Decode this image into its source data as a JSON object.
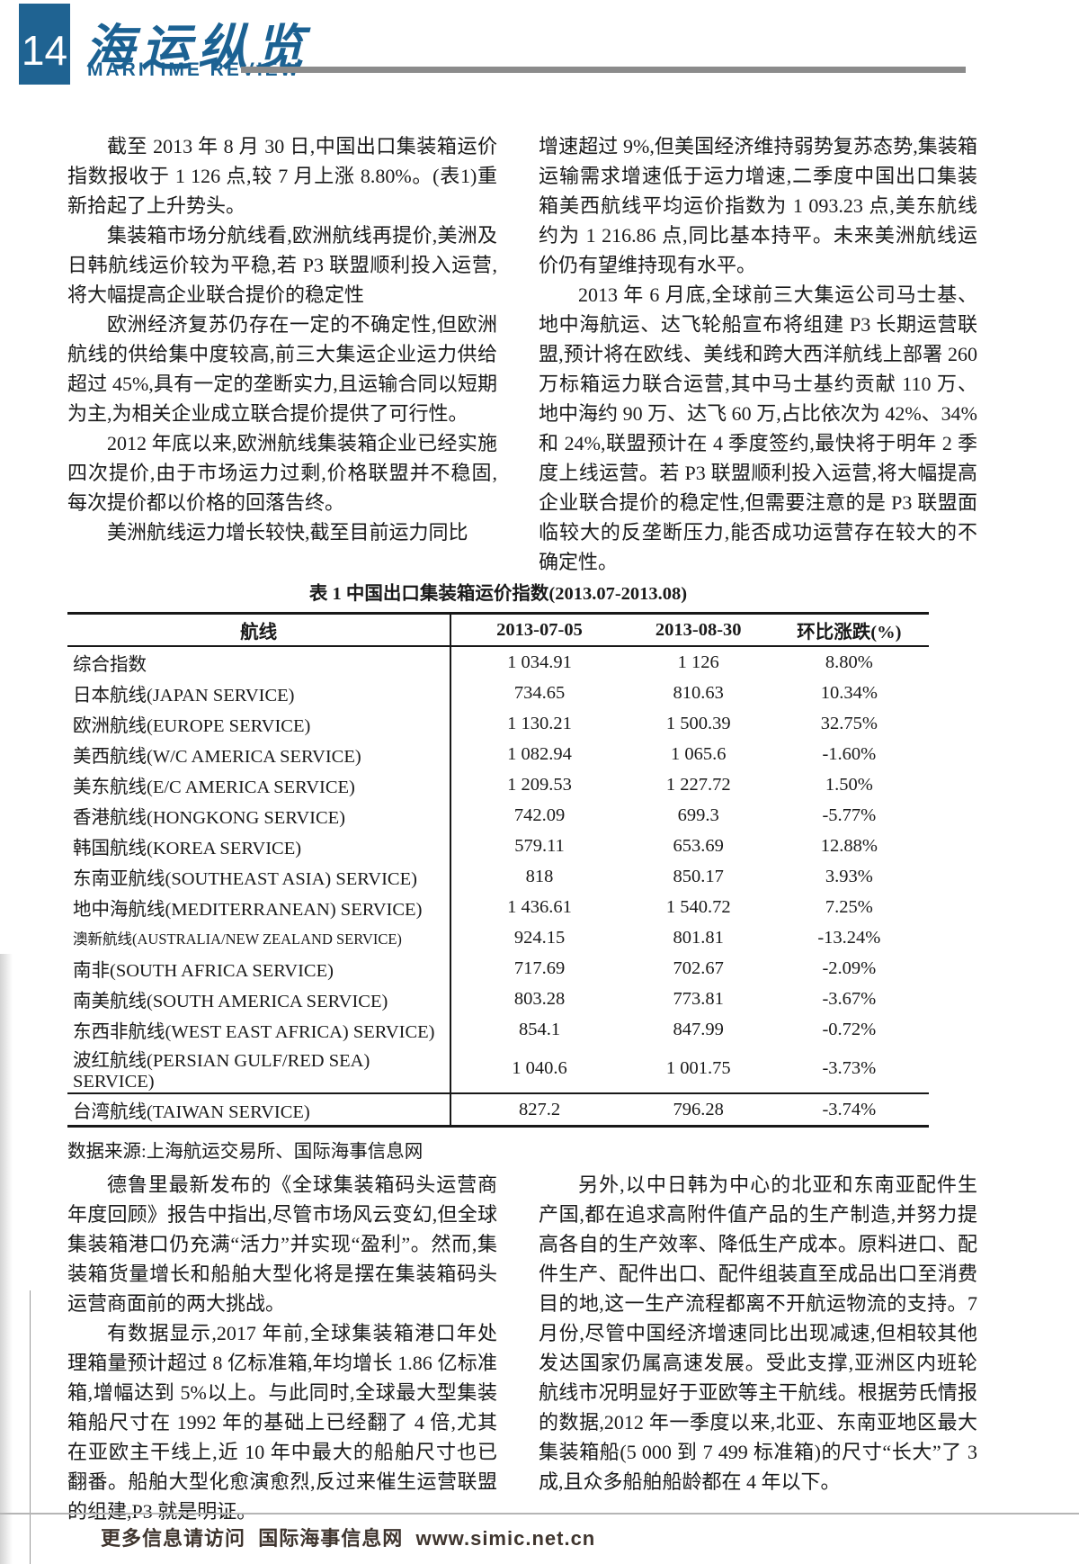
{
  "header": {
    "page_number": "14",
    "title_cn": "海运纵览",
    "title_en": "MARITIME REVIEW"
  },
  "article": {
    "col_left_top": {
      "p1": "截至 2013 年 8 月 30 日,中国出口集装箱运价指数报收于 1 126 点,较 7 月上涨 8.80%。(表1)重新拾起了上升势头。",
      "p2": "集装箱市场分航线看,欧洲航线再提价,美洲及日韩航线运价较为平稳,若 P3 联盟顺利投入运营,将大幅提高企业联合提价的稳定性",
      "p3": "欧洲经济复苏仍存在一定的不确定性,但欧洲航线的供给集中度较高,前三大集运企业运力供给超过 45%,具有一定的垄断实力,且运输合同以短期为主,为相关企业成立联合提价提供了可行性。",
      "p4": "2012 年底以来,欧洲航线集装箱企业已经实施四次提价,由于市场运力过剩,价格联盟并不稳固,每次提价都以价格的回落告终。",
      "p5": "美洲航线运力增长较快,截至目前运力同比"
    },
    "col_right_top": {
      "p1": "增速超过 9%,但美国经济维持弱势复苏态势,集装箱运输需求增速低于运力增速,二季度中国出口集装箱美西航线平均运价指数为 1 093.23 点,美东航线约为 1 216.86 点,同比基本持平。未来美洲航线运价仍有望维持现有水平。",
      "p2": "2013 年 6 月底,全球前三大集运公司马士基、地中海航运、达飞轮船宣布将组建 P3 长期运营联盟,预计将在欧线、美线和跨大西洋航线上部署 260 万标箱运力联合运营,其中马士基约贡献 110 万、地中海约 90 万、达飞 60 万,占比依次为 42%、34%和 24%,联盟预计在 4 季度签约,最快将于明年 2 季度上线运营。若 P3 联盟顺利投入运营,将大幅提高企业联合提价的稳定性,但需要注意的是 P3 联盟面临较大的反垄断压力,能否成功运营存在较大的不确定性。"
    },
    "col_left_bottom": {
      "p1": "德鲁里最新发布的《全球集装箱码头运营商年度回顾》报告中指出,尽管市场风云变幻,但全球集装箱港口仍充满“活力”并实现“盈利”。然而,集装箱货量增长和船舶大型化将是摆在集装箱码头运营商面前的两大挑战。",
      "p2": "有数据显示,2017 年前,全球集装箱港口年处理箱量预计超过 8 亿标准箱,年均增长 1.86 亿标准箱,增幅达到 5%以上。与此同时,全球最大型集装箱船尺寸在 1992 年的基础上已经翻了 4 倍,尤其在亚欧主干线上,近 10 年中最大的船舶尺寸也已翻番。船舶大型化愈演愈烈,反过来催生运营联盟的组建,P3 就是明证。"
    },
    "col_right_bottom": {
      "p1": "另外,以中日韩为中心的北亚和东南亚配件生产国,都在追求高附件值产品的生产制造,并努力提高各自的生产效率、降低生产成本。原料进口、配件生产、配件出口、配件组装直至成品出口至消费目的地,这一生产流程都离不开航运物流的支持。7 月份,尽管中国经济增速同比出现减速,但相较其他发达国家仍属高速发展。受此支撑,亚洲区内班轮航线市况明显好于亚欧等主干航线。根据劳氏情报的数据,2012 年一季度以来,北亚、东南亚地区最大集装箱船(5 000 到 7 499 标准箱)的尺寸“长大”了 3 成,且众多船舶船龄都在 4 年以下。"
    }
  },
  "table": {
    "caption": "表 1  中国出口集装箱运价指数(2013.07-2013.08)",
    "headers": [
      "航线",
      "2013-07-05",
      "2013-08-30",
      "环比涨跌(%)"
    ],
    "rows": [
      {
        "route": "综合指数",
        "jul": "1 034.91",
        "aug": "1 126",
        "chg": "8.80%"
      },
      {
        "route": "日本航线(JAPAN SERVICE)",
        "jul": "734.65",
        "aug": "810.63",
        "chg": "10.34%"
      },
      {
        "route": "欧洲航线(EUROPE SERVICE)",
        "jul": "1 130.21",
        "aug": "1 500.39",
        "chg": "32.75%"
      },
      {
        "route": "美西航线(W/C AMERICA SERVICE)",
        "jul": "1 082.94",
        "aug": "1 065.6",
        "chg": "-1.60%"
      },
      {
        "route": "美东航线(E/C AMERICA SERVICE)",
        "jul": "1 209.53",
        "aug": "1 227.72",
        "chg": "1.50%"
      },
      {
        "route": "香港航线(HONGKONG SERVICE)",
        "jul": "742.09",
        "aug": "699.3",
        "chg": "-5.77%"
      },
      {
        "route": "韩国航线(KOREA SERVICE)",
        "jul": "579.11",
        "aug": "653.69",
        "chg": "12.88%"
      },
      {
        "route": "东南亚航线(SOUTHEAST ASIA) SERVICE)",
        "jul": "818",
        "aug": "850.17",
        "chg": "3.93%"
      },
      {
        "route": "地中海航线(MEDITERRANEAN) SERVICE)",
        "jul": "1 436.61",
        "aug": "1 540.72",
        "chg": "7.25%"
      },
      {
        "route": "澳新航线(AUSTRALIA/NEW ZEALAND SERVICE)",
        "jul": "924.15",
        "aug": "801.81",
        "chg": "-13.24%"
      },
      {
        "route": "南非(SOUTH AFRICA SERVICE)",
        "jul": "717.69",
        "aug": "702.67",
        "chg": "-2.09%"
      },
      {
        "route": "南美航线(SOUTH AMERICA SERVICE)",
        "jul": "803.28",
        "aug": "773.81",
        "chg": "-3.67%"
      },
      {
        "route": "东西非航线(WEST EAST AFRICA) SERVICE)",
        "jul": "854.1",
        "aug": "847.99",
        "chg": "-0.72%"
      },
      {
        "route": "波红航线(PERSIAN GULF/RED SEA) SERVICE)",
        "jul": "1 040.6",
        "aug": "1 001.75",
        "chg": "-3.73%"
      },
      {
        "route": "台湾航线(TAIWAN SERVICE)",
        "jul": "827.2",
        "aug": "796.28",
        "chg": "-3.74%"
      }
    ],
    "source": "数据来源:上海航运交易所、国际海事信息网"
  },
  "footer": {
    "text": "更多信息请访问  国际海事信息网  www.simic.net.cn"
  },
  "colors": {
    "brand_blue": "#1f6392",
    "rule_gray": "#8b8b8b"
  }
}
